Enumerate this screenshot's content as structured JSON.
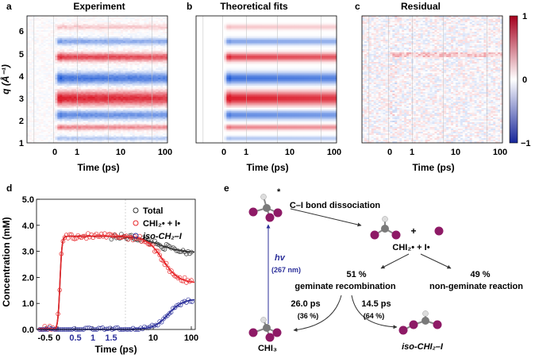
{
  "top": {
    "panels": [
      {
        "letter": "a",
        "title": "Experiment",
        "noise": 0.12
      },
      {
        "letter": "b",
        "title": "Theoretical fits",
        "noise": 0.0
      },
      {
        "letter": "c",
        "title": "Residual",
        "noise": 1.0
      }
    ],
    "y_ticks": [
      "1",
      "2",
      "3",
      "4",
      "5",
      "6"
    ],
    "y_label": "q (Å⁻¹)",
    "x_ticks": [
      "0",
      "1",
      "10",
      "100"
    ],
    "x_label": "Time (ps)",
    "colorbar": {
      "max": "1",
      "mid": "0",
      "min": "−1",
      "max_color": "#a5001d",
      "mid_color": "#ffffff",
      "min_color": "#17269a"
    },
    "bands": [
      {
        "q": 1.2,
        "amp": -0.35,
        "w": 0.1
      },
      {
        "q": 1.7,
        "amp": 0.55,
        "w": 0.12
      },
      {
        "q": 2.25,
        "amp": -0.7,
        "w": 0.2
      },
      {
        "q": 3.0,
        "amp": 1.0,
        "w": 0.3
      },
      {
        "q": 3.9,
        "amp": -0.85,
        "w": 0.25
      },
      {
        "q": 4.85,
        "amp": 0.85,
        "w": 0.18
      },
      {
        "q": 5.55,
        "amp": -0.55,
        "w": 0.15
      },
      {
        "q": 6.2,
        "amp": 0.25,
        "w": 0.12
      }
    ]
  },
  "panel_d": {
    "letter": "d",
    "chart_data": {
      "type": "scatter",
      "xlabel": "Time (ps)",
      "ylabel": "Concentration (mM)",
      "x_ticks": [
        "-0.5",
        "0",
        "0.5",
        "1",
        "1.5",
        "10",
        "100"
      ],
      "x_ticks_colored": [
        "0.5",
        "1",
        "1.5"
      ],
      "ylim": [
        0,
        5.0
      ],
      "y_ticks": [
        "0.0",
        "1.0",
        "2.0",
        "3.0",
        "4.0",
        "5.0"
      ],
      "legend_position": "top-right",
      "series": [
        {
          "name": "Total",
          "color": "#333333",
          "plateau": 3.58,
          "final": 2.95
        },
        {
          "name": "CHI₂• + I•",
          "color": "#e8262a",
          "plateau": 3.58,
          "final": 1.78
        },
        {
          "name": "iso-CH₂–I",
          "color": "#2b2f9a",
          "plateau": 0.0,
          "final": 1.17
        }
      ]
    }
  },
  "panel_e": {
    "letter": "e",
    "star": "*",
    "dissociation": "C–I bond dissociation",
    "plus": "+",
    "products": "CHI₂• + I•",
    "excitation": "hv",
    "wavelength": "(267 nm)",
    "geminate_pct": "51 %",
    "geminate_label": "geminate recombination",
    "nongeminate_pct": "49 %",
    "nongeminate_label": "non-geminate reaction",
    "path_left_time": "26.0 ps",
    "path_left_pct": "(36 %)",
    "path_right_time": "14.5 ps",
    "path_right_pct": "(64 %)",
    "chi3_label": "CHI₃",
    "iso_label": "iso-CHI₂–I"
  }
}
